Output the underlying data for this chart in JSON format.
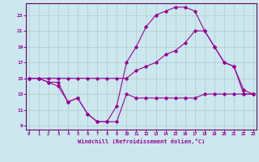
{
  "xlabel": "Windchill (Refroidissement éolien,°C)",
  "bg_color": "#cce8ee",
  "grid_color": "#aacccc",
  "line_color": "#990099",
  "spine_color": "#660066",
  "xlim": [
    -0.3,
    23.3
  ],
  "ylim": [
    8.5,
    24.5
  ],
  "yticks": [
    9,
    11,
    13,
    15,
    17,
    19,
    21,
    23
  ],
  "xticks": [
    0,
    1,
    2,
    3,
    4,
    5,
    6,
    7,
    8,
    9,
    10,
    11,
    12,
    13,
    14,
    15,
    16,
    17,
    18,
    19,
    20,
    21,
    22,
    23
  ],
  "line1_x": [
    0,
    1,
    2,
    3,
    4,
    5,
    6,
    7,
    8,
    9,
    10,
    11,
    12,
    13,
    14,
    15,
    16,
    17,
    18,
    19,
    20,
    21,
    22,
    23
  ],
  "line1_y": [
    15,
    15,
    14.5,
    14.5,
    12,
    12.5,
    10.5,
    9.5,
    9.5,
    9.5,
    13,
    12.5,
    12.5,
    12.5,
    12.5,
    12.5,
    12.5,
    12.5,
    13,
    13,
    13,
    13,
    13,
    13
  ],
  "line2_x": [
    0,
    1,
    2,
    3,
    4,
    5,
    6,
    7,
    8,
    9,
    10,
    11,
    12,
    13,
    14,
    15,
    16,
    17,
    18,
    19,
    20,
    21,
    22,
    23
  ],
  "line2_y": [
    15,
    15,
    15,
    15,
    15,
    15,
    15,
    15,
    15,
    15,
    15,
    16,
    16.5,
    17.0,
    18.0,
    18.5,
    19.5,
    21.0,
    21.0,
    19.0,
    17.0,
    16.5,
    13.0,
    13.0
  ],
  "line3_x": [
    0,
    1,
    2,
    3,
    4,
    5,
    6,
    7,
    8,
    9,
    10,
    11,
    12,
    13,
    14,
    15,
    16,
    17,
    18,
    19,
    20,
    21,
    22,
    23
  ],
  "line3_y": [
    15,
    15,
    14.5,
    14,
    12,
    12.5,
    10.5,
    9.5,
    9.5,
    11.5,
    17.0,
    19.0,
    21.5,
    23.0,
    23.5,
    24.0,
    24.0,
    23.5,
    21.0,
    19.0,
    17.0,
    16.5,
    13.5,
    13.0
  ]
}
